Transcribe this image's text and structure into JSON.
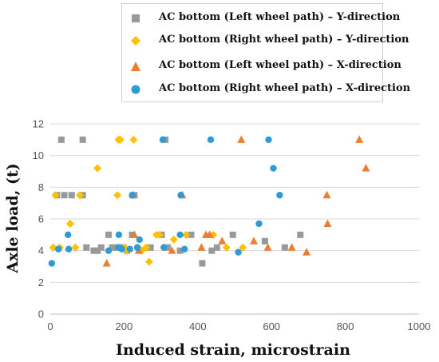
{
  "chart_data": {
    "type": "scatter",
    "xlabel": "Induced strain, microstrain",
    "ylabel": "Axle load, (t)",
    "xlim": [
      0,
      1000
    ],
    "ylim": [
      0,
      12
    ],
    "xticks": [
      0,
      200,
      400,
      600,
      800,
      1000
    ],
    "yticks": [
      0,
      2,
      4,
      6,
      8,
      10,
      12
    ],
    "grid": "horizontal",
    "legend_placement": "top",
    "series": [
      {
        "name": "AC bottom (Left wheel path) – Y-direction",
        "marker": "square",
        "color": "#999999",
        "points": [
          [
            30,
            11
          ],
          [
            88,
            11
          ],
          [
            312,
            11
          ],
          [
            18,
            7.5
          ],
          [
            38,
            7.5
          ],
          [
            58,
            7.5
          ],
          [
            88,
            7.5
          ],
          [
            228,
            7.5
          ],
          [
            158,
            5
          ],
          [
            222,
            5
          ],
          [
            302,
            5
          ],
          [
            382,
            5
          ],
          [
            495,
            5
          ],
          [
            678,
            5
          ],
          [
            582,
            4.6
          ],
          [
            98,
            4.2
          ],
          [
            138,
            4.2
          ],
          [
            168,
            4.2
          ],
          [
            182,
            4.2
          ],
          [
            198,
            4.2
          ],
          [
            272,
            4.2
          ],
          [
            318,
            4.2
          ],
          [
            452,
            4.2
          ],
          [
            636,
            4.2
          ],
          [
            118,
            4.0
          ],
          [
            128,
            4.0
          ],
          [
            208,
            4.0
          ],
          [
            352,
            4.0
          ],
          [
            438,
            4.0
          ],
          [
            412,
            3.2
          ]
        ]
      },
      {
        "name": "AC bottom (Right wheel path) – Y-direction",
        "marker": "diamond",
        "color": "#ffc000",
        "points": [
          [
            185,
            11
          ],
          [
            190,
            11
          ],
          [
            226,
            11
          ],
          [
            128,
            9.2
          ],
          [
            14,
            7.5
          ],
          [
            80,
            7.5
          ],
          [
            182,
            7.5
          ],
          [
            54,
            5.7
          ],
          [
            288,
            5
          ],
          [
            296,
            5
          ],
          [
            368,
            5
          ],
          [
            442,
            5
          ],
          [
            335,
            4.7
          ],
          [
            8,
            4.2
          ],
          [
            26,
            4.2
          ],
          [
            68,
            4.2
          ],
          [
            202,
            4.2
          ],
          [
            238,
            4.2
          ],
          [
            260,
            4.2
          ],
          [
            308,
            4.2
          ],
          [
            478,
            4.2
          ],
          [
            522,
            4.2
          ],
          [
            208,
            4.0
          ],
          [
            248,
            4.0
          ],
          [
            268,
            3.3
          ]
        ]
      },
      {
        "name": "AC bottom (Left wheel path) – X-direction",
        "marker": "triangle",
        "color": "#ed7d31",
        "points": [
          [
            518,
            11
          ],
          [
            838,
            11
          ],
          [
            856,
            9.2
          ],
          [
            225,
            7.5
          ],
          [
            358,
            7.5
          ],
          [
            750,
            7.5
          ],
          [
            752,
            5.7
          ],
          [
            228,
            5
          ],
          [
            422,
            5
          ],
          [
            432,
            5
          ],
          [
            552,
            4.6
          ],
          [
            466,
            4.6
          ],
          [
            410,
            4.2
          ],
          [
            590,
            4.2
          ],
          [
            655,
            4.2
          ],
          [
            240,
            4.0
          ],
          [
            330,
            4.0
          ],
          [
            695,
            3.9
          ],
          [
            153,
            3.2
          ]
        ]
      },
      {
        "name": "AC bottom (Right wheel path) – X-direction",
        "marker": "circle",
        "color": "#2e9bd6",
        "points": [
          [
            305,
            11
          ],
          [
            435,
            11
          ],
          [
            592,
            11
          ],
          [
            605,
            9.2
          ],
          [
            222,
            7.5
          ],
          [
            354,
            7.5
          ],
          [
            622,
            7.5
          ],
          [
            566,
            5.7
          ],
          [
            48,
            5
          ],
          [
            186,
            5
          ],
          [
            352,
            5
          ],
          [
            242,
            4.7
          ],
          [
            4,
            3.2
          ],
          [
            22,
            4.1
          ],
          [
            50,
            4.1
          ],
          [
            158,
            4.0
          ],
          [
            185,
            4.2
          ],
          [
            194,
            4.1
          ],
          [
            216,
            4.1
          ],
          [
            236,
            4.2
          ],
          [
            308,
            4.2
          ],
          [
            364,
            4.1
          ],
          [
            510,
            3.9
          ]
        ]
      }
    ]
  }
}
